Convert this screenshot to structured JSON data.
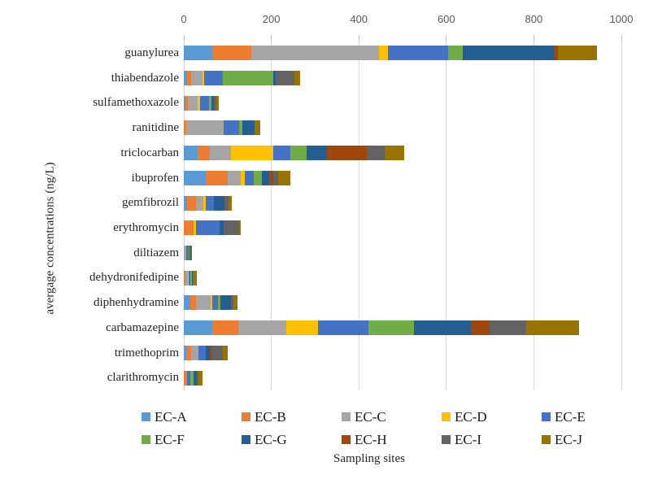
{
  "chart_data": {
    "type": "bar",
    "orientation": "horizontal",
    "stacked": true,
    "title": "",
    "xlabel": "Sampling sites",
    "ylabel": "avergage concentrations (ng/L)",
    "xlim": [
      0,
      1000
    ],
    "x_ticks": [
      0,
      200,
      400,
      600,
      800,
      1000
    ],
    "grid": true,
    "legend_position": "bottom",
    "categories": [
      "guanylurea",
      "thiabendazole",
      "sulfamethoxazole",
      "ranitidine",
      "triclocarban",
      "ibuprofen",
      "gemfibrozil",
      "erythromycin",
      "diltiazem",
      "dehydronifedipine",
      "diphenhydramine",
      "carbamazepine",
      "trimethoprim",
      "clarithromycin"
    ],
    "series": [
      {
        "name": "EC-A",
        "color": "#5B9BD5",
        "values": [
          67,
          7,
          4,
          0,
          32,
          51,
          7,
          0,
          0,
          0,
          14,
          65,
          6,
          0
        ]
      },
      {
        "name": "EC-B",
        "color": "#ED7D31",
        "values": [
          88,
          9,
          5,
          6,
          28,
          50,
          21,
          22,
          0,
          4,
          13,
          60,
          11,
          7
        ]
      },
      {
        "name": "EC-C",
        "color": "#A5A5A5",
        "values": [
          292,
          26,
          23,
          85,
          48,
          30,
          17,
          0,
          6,
          5,
          35,
          109,
          17,
          0
        ]
      },
      {
        "name": "EC-D",
        "color": "#FFC000",
        "values": [
          19,
          4,
          6,
          0,
          96,
          9,
          5,
          5,
          0,
          2,
          4,
          73,
          0,
          0
        ]
      },
      {
        "name": "EC-E",
        "color": "#4472C4",
        "values": [
          138,
          43,
          20,
          36,
          40,
          20,
          19,
          55,
          5,
          4,
          13,
          115,
          17,
          8
        ]
      },
      {
        "name": "EC-F",
        "color": "#70AD47",
        "values": [
          33,
          115,
          5,
          6,
          37,
          19,
          0,
          0,
          2,
          4,
          4,
          105,
          0,
          7
        ]
      },
      {
        "name": "EC-G",
        "color": "#255E91",
        "values": [
          210,
          6,
          6,
          29,
          47,
          17,
          24,
          9,
          2,
          2,
          24,
          130,
          8,
          8
        ]
      },
      {
        "name": "EC-H",
        "color": "#9E480E",
        "values": [
          9,
          0,
          0,
          0,
          91,
          8,
          0,
          0,
          0,
          0,
          0,
          42,
          5,
          0
        ]
      },
      {
        "name": "EC-I",
        "color": "#636363",
        "values": [
          0,
          42,
          5,
          0,
          41,
          12,
          9,
          36,
          3,
          0,
          7,
          84,
          26,
          4
        ]
      },
      {
        "name": "EC-J",
        "color": "#997300",
        "values": [
          88,
          13,
          6,
          12,
          43,
          27,
          8,
          3,
          0,
          9,
          8,
          121,
          10,
          8
        ]
      }
    ],
    "style": {
      "gridline_color": "#d9d9d9",
      "tick_mark_color": "#bfbfbf",
      "axis_label_color": "#595959"
    }
  }
}
